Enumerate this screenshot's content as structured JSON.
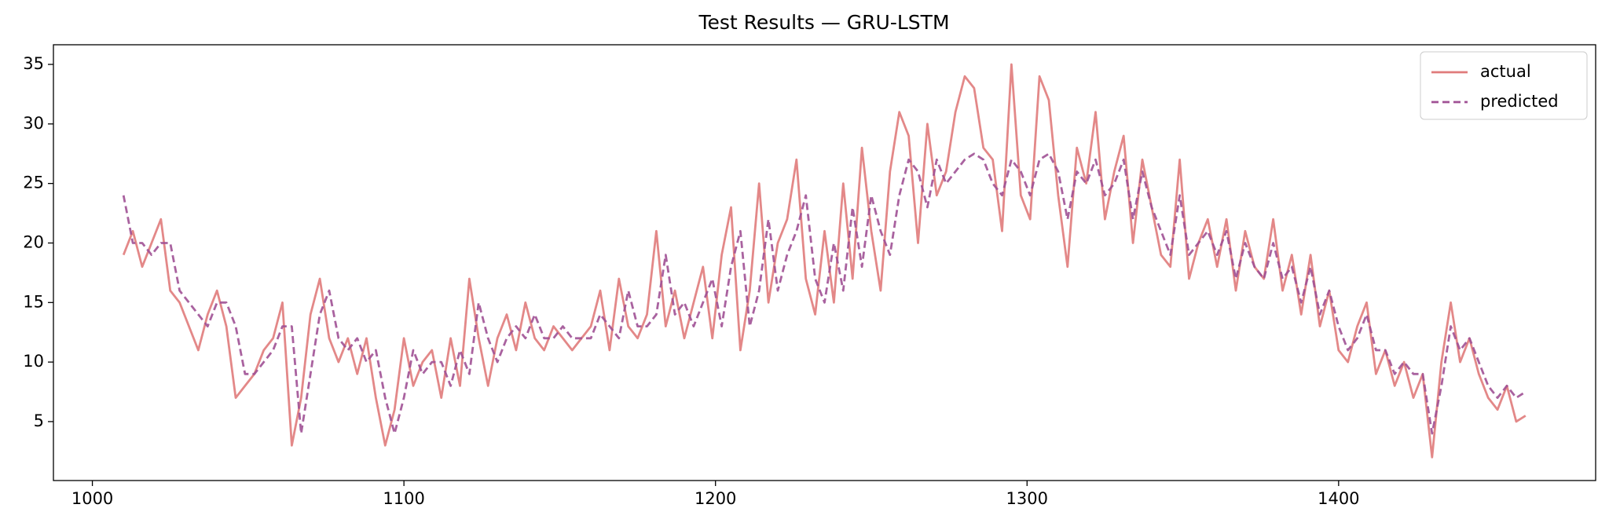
{
  "chart_data": {
    "type": "line",
    "title": "Test Results — GRU-LSTM",
    "x": [
      1010,
      1013,
      1016,
      1019,
      1022,
      1025,
      1028,
      1031,
      1034,
      1037,
      1040,
      1043,
      1046,
      1049,
      1052,
      1055,
      1058,
      1061,
      1064,
      1067,
      1070,
      1073,
      1076,
      1079,
      1082,
      1085,
      1088,
      1091,
      1094,
      1097,
      1100,
      1103,
      1106,
      1109,
      1112,
      1115,
      1118,
      1121,
      1124,
      1127,
      1130,
      1133,
      1136,
      1139,
      1142,
      1145,
      1148,
      1151,
      1154,
      1157,
      1160,
      1163,
      1166,
      1169,
      1172,
      1175,
      1178,
      1181,
      1184,
      1187,
      1190,
      1193,
      1196,
      1199,
      1202,
      1205,
      1208,
      1211,
      1214,
      1217,
      1220,
      1223,
      1226,
      1229,
      1232,
      1235,
      1238,
      1241,
      1244,
      1247,
      1250,
      1253,
      1256,
      1259,
      1262,
      1265,
      1268,
      1271,
      1274,
      1277,
      1280,
      1283,
      1286,
      1289,
      1292,
      1295,
      1298,
      1301,
      1304,
      1307,
      1310,
      1313,
      1316,
      1319,
      1322,
      1325,
      1328,
      1331,
      1334,
      1337,
      1340,
      1343,
      1346,
      1349,
      1352,
      1355,
      1358,
      1361,
      1364,
      1367,
      1370,
      1373,
      1376,
      1379,
      1382,
      1385,
      1388,
      1391,
      1394,
      1397,
      1400,
      1403,
      1406,
      1409,
      1412,
      1415,
      1418,
      1421,
      1424,
      1427,
      1430,
      1433,
      1436,
      1439,
      1442,
      1445,
      1448,
      1451,
      1454,
      1457,
      1460
    ],
    "series": [
      {
        "name": "actual",
        "color": "#e07b7b",
        "linestyle": "solid",
        "values": [
          19,
          21,
          18,
          20,
          22,
          16,
          15,
          13,
          11,
          14,
          16,
          13,
          7,
          8,
          9,
          11,
          12,
          15,
          3,
          7,
          14,
          17,
          12,
          10,
          12,
          9,
          12,
          7,
          3,
          6,
          12,
          8,
          10,
          11,
          7,
          12,
          8,
          17,
          12,
          8,
          12,
          14,
          11,
          15,
          12,
          11,
          13,
          12,
          11,
          12,
          13,
          16,
          11,
          17,
          13,
          12,
          14,
          21,
          13,
          16,
          12,
          15,
          18,
          12,
          19,
          23,
          11,
          16,
          25,
          15,
          20,
          22,
          27,
          17,
          14,
          21,
          15,
          25,
          17,
          28,
          21,
          16,
          26,
          31,
          29,
          20,
          30,
          24,
          26,
          31,
          34,
          33,
          28,
          27,
          21,
          35,
          24,
          22,
          34,
          32,
          24,
          18,
          28,
          25,
          31,
          22,
          26,
          29,
          20,
          27,
          23,
          19,
          18,
          27,
          17,
          20,
          22,
          18,
          22,
          16,
          21,
          18,
          17,
          22,
          16,
          19,
          14,
          19,
          13,
          16,
          11,
          10,
          13,
          15,
          9,
          11,
          8,
          10,
          7,
          9,
          2,
          10,
          15,
          10,
          12,
          9,
          7,
          6,
          8,
          5,
          5.5
        ]
      },
      {
        "name": "predicted",
        "color": "#a05195",
        "linestyle": "dashed",
        "values": [
          24,
          20,
          20,
          19,
          20,
          20,
          16,
          15,
          14,
          13,
          15,
          15,
          13,
          9,
          9,
          10,
          11,
          13,
          13,
          4,
          9,
          14,
          16,
          12,
          11,
          12,
          10,
          11,
          7,
          4,
          7,
          11,
          9,
          10,
          10,
          8,
          11,
          9,
          15,
          12,
          10,
          12,
          13,
          12,
          14,
          12,
          12,
          13,
          12,
          12,
          12,
          14,
          13,
          12,
          16,
          13,
          13,
          14,
          19,
          14,
          15,
          13,
          15,
          17,
          13,
          18,
          21,
          13,
          16,
          22,
          16,
          19,
          21,
          24,
          17,
          15,
          20,
          16,
          23,
          18,
          24,
          21,
          19,
          24,
          27,
          26,
          23,
          27,
          25,
          26,
          27,
          27.5,
          27,
          25,
          24,
          27,
          26,
          24,
          27,
          27.5,
          26,
          22,
          26,
          25,
          27,
          24,
          25,
          27,
          22,
          26,
          23,
          21,
          19,
          24,
          19,
          20,
          21,
          19,
          21,
          17,
          20,
          18,
          17,
          20,
          17,
          18,
          15,
          18,
          14,
          16,
          13,
          11,
          12,
          14,
          11,
          11,
          9,
          10,
          9,
          9,
          4,
          8,
          13,
          11,
          12,
          10,
          8,
          7,
          8,
          7,
          7.5
        ]
      }
    ],
    "xlim": [
      987.5,
      1482.5
    ],
    "xticks": [
      1000,
      1100,
      1200,
      1300,
      1400
    ],
    "ylim": [
      0.05,
      36.65
    ],
    "yticks": [
      5,
      10,
      15,
      20,
      25,
      30,
      35
    ],
    "grid": false,
    "legend": "upper right"
  }
}
